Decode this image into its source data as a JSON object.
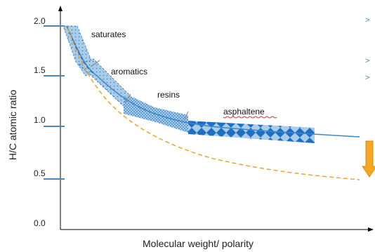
{
  "chart_data": {
    "type": "line",
    "title": "",
    "xlabel": "Molecular weight/ polarity",
    "ylabel": "H/C atomic ratio",
    "ylim": [
      0.0,
      2.0
    ],
    "yticks": [
      "0.0",
      "0.5",
      "1.0",
      "1.5",
      "2.0"
    ],
    "grid": false,
    "series_color": "#3d86c8",
    "dashed_color": "#f0a030",
    "band_color": "#a9cde8",
    "diamond_color": "#1e6fc2",
    "arrow_color": "#f5a623",
    "annotations": [
      {
        "text": "saturates"
      },
      {
        "text": "aromatics"
      },
      {
        "text": "resins"
      },
      {
        "text": "asphaltene"
      }
    ],
    "side_marks": [
      ">",
      ">",
      ">"
    ]
  }
}
